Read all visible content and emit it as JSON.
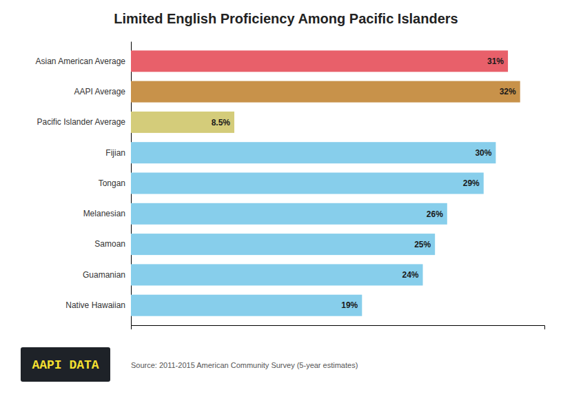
{
  "chart_data": {
    "type": "bar",
    "orientation": "horizontal",
    "title": "Limited English Proficiency Among Pacific Islanders",
    "categories": [
      "Asian American Average",
      "AAPI Average",
      "Pacific Islander Average",
      "Fijian",
      "Tongan",
      "Melanesian",
      "Samoan",
      "Guamanian",
      "Native Hawaiian"
    ],
    "values": [
      31,
      32,
      8.5,
      30,
      29,
      26,
      25,
      24,
      19
    ],
    "value_labels": [
      "31%",
      "32%",
      "8.5%",
      "30%",
      "29%",
      "26%",
      "25%",
      "24%",
      "19%"
    ],
    "colors": [
      "#e8606a",
      "#c8924a",
      "#d4cc7a",
      "#87ceeb",
      "#87ceeb",
      "#87ceeb",
      "#87ceeb",
      "#87ceeb",
      "#87ceeb"
    ],
    "xlim": [
      0,
      34
    ],
    "data_labels": true,
    "tick_labels": "y",
    "grid": false,
    "annotations": [
      "Source: 2011-2015 American Community Survey (5-year estimates)",
      "AAPI DATA"
    ]
  }
}
